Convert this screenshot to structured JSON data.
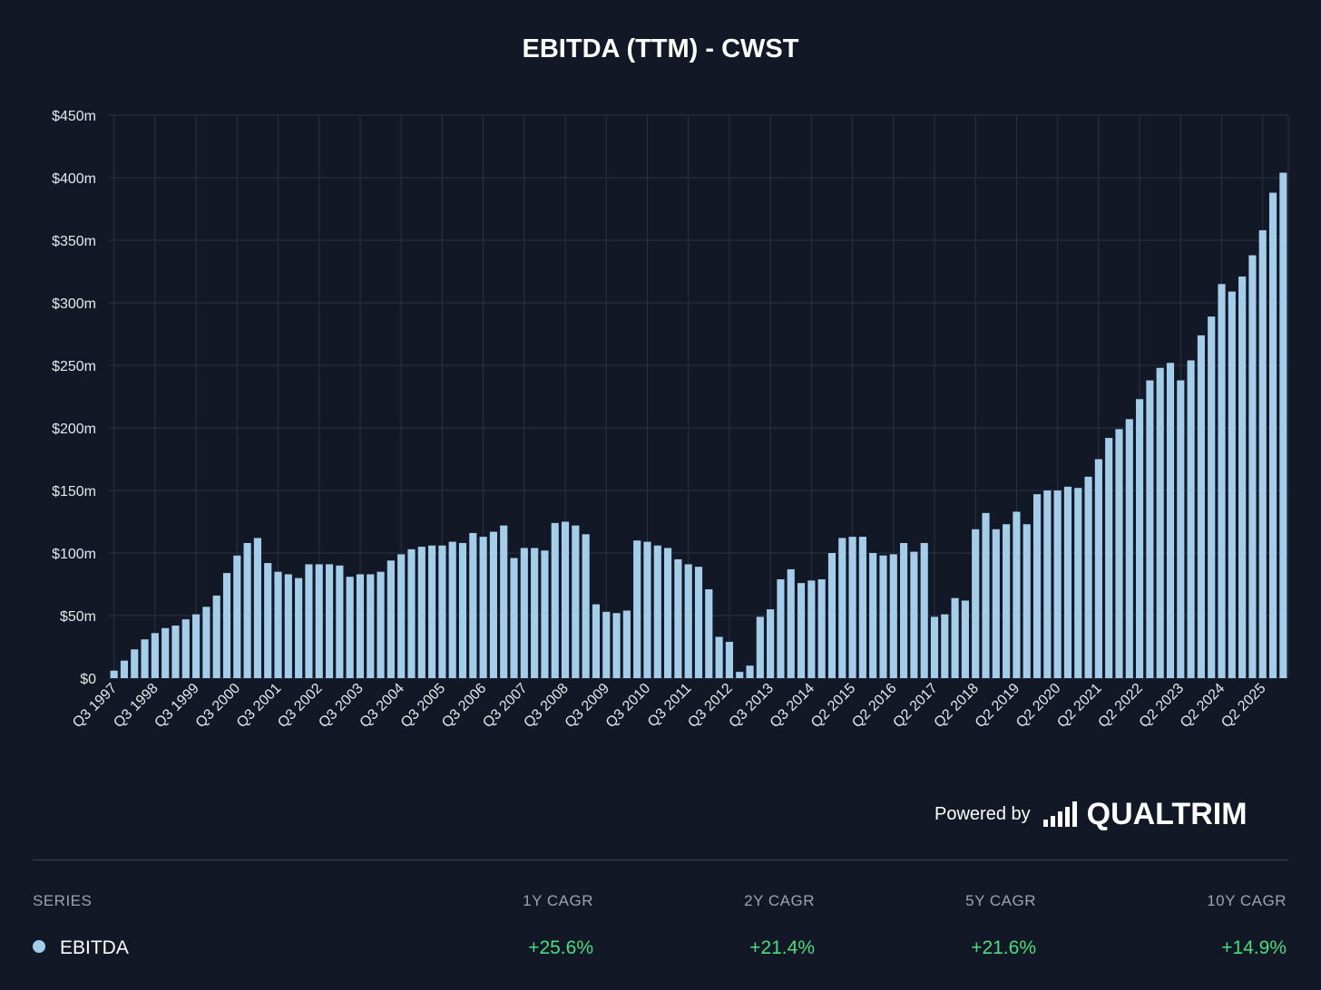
{
  "chart_data": {
    "type": "bar",
    "title": "EBITDA (TTM) - CWST",
    "ylim": [
      0,
      450
    ],
    "ytick_values": [
      0,
      50,
      100,
      150,
      200,
      250,
      300,
      350,
      400,
      450
    ],
    "ytick_labels": [
      "$0",
      "$50m",
      "$100m",
      "$150m",
      "$200m",
      "$250m",
      "$300m",
      "$350m",
      "$400m",
      "$450m"
    ],
    "grid": true,
    "bar_color": "#a3cde8",
    "xtick_labels": [
      {
        "i": 0,
        "label": "Q3 1997"
      },
      {
        "i": 4,
        "label": "Q3 1998"
      },
      {
        "i": 8,
        "label": "Q3 1999"
      },
      {
        "i": 12,
        "label": "Q3 2000"
      },
      {
        "i": 16,
        "label": "Q3 2001"
      },
      {
        "i": 20,
        "label": "Q3 2002"
      },
      {
        "i": 24,
        "label": "Q3 2003"
      },
      {
        "i": 28,
        "label": "Q3 2004"
      },
      {
        "i": 32,
        "label": "Q3 2005"
      },
      {
        "i": 36,
        "label": "Q3 2006"
      },
      {
        "i": 40,
        "label": "Q3 2007"
      },
      {
        "i": 44,
        "label": "Q3 2008"
      },
      {
        "i": 48,
        "label": "Q3 2009"
      },
      {
        "i": 52,
        "label": "Q3 2010"
      },
      {
        "i": 56,
        "label": "Q3 2011"
      },
      {
        "i": 60,
        "label": "Q3 2012"
      },
      {
        "i": 64,
        "label": "Q3 2013"
      },
      {
        "i": 68,
        "label": "Q3 2014"
      },
      {
        "i": 72,
        "label": "Q2 2015"
      },
      {
        "i": 76,
        "label": "Q2 2016"
      },
      {
        "i": 80,
        "label": "Q2 2017"
      },
      {
        "i": 84,
        "label": "Q2 2018"
      },
      {
        "i": 88,
        "label": "Q2 2019"
      },
      {
        "i": 92,
        "label": "Q2 2020"
      },
      {
        "i": 96,
        "label": "Q2 2021"
      },
      {
        "i": 100,
        "label": "Q2 2022"
      },
      {
        "i": 104,
        "label": "Q2 2023"
      },
      {
        "i": 108,
        "label": "Q2 2024"
      },
      {
        "i": 112,
        "label": "Q2 2025"
      }
    ],
    "series": [
      {
        "name": "EBITDA",
        "values": [
          6,
          14,
          23,
          31,
          36,
          40,
          42,
          47,
          51,
          57,
          66,
          84,
          98,
          108,
          112,
          92,
          85,
          83,
          80,
          91,
          91,
          91,
          90,
          81,
          83,
          83,
          85,
          94,
          99,
          103,
          105,
          106,
          106,
          109,
          108,
          116,
          113,
          117,
          122,
          96,
          104,
          104,
          102,
          124,
          125,
          122,
          115,
          59,
          53,
          52,
          54,
          110,
          109,
          106,
          104,
          95,
          91,
          89,
          71,
          33,
          29,
          5,
          10,
          49,
          55,
          79,
          87,
          76,
          78,
          79,
          100,
          112,
          113,
          113,
          100,
          98,
          99,
          108,
          101,
          108,
          49,
          51,
          64,
          62,
          119,
          132,
          119,
          123,
          133,
          123,
          147,
          150,
          150,
          153,
          152,
          161,
          175,
          192,
          199,
          207,
          223,
          238,
          248,
          252,
          238,
          254,
          274,
          289,
          315,
          309,
          321,
          338,
          358,
          388,
          404
        ]
      }
    ]
  },
  "branding": {
    "powered_by": "Powered by",
    "logo_text": "QUALTRIM"
  },
  "table": {
    "headers": {
      "series": "SERIES",
      "y1": "1Y CAGR",
      "y2": "2Y CAGR",
      "y5": "5Y CAGR",
      "y10": "10Y CAGR"
    },
    "rows": [
      {
        "name": "EBITDA",
        "y1": "+25.6%",
        "y2": "+21.4%",
        "y5": "+21.6%",
        "y10": "+14.9%",
        "dot_color": "#a3cde8",
        "value_color": "#4ade80"
      }
    ]
  }
}
